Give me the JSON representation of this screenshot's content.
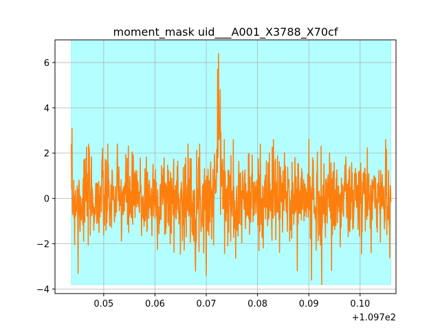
{
  "chart_data": {
    "type": "line",
    "title": "moment_mask uid___A001_X3788_X70cf",
    "xlabel": "",
    "ylabel": "",
    "x_offset_label": "+1.097e2",
    "x_offset": 109.7,
    "xlim": [
      109.7405,
      109.807
    ],
    "ylim": [
      -4.2,
      7.0
    ],
    "x_ticks": [
      109.75,
      109.76,
      109.77,
      109.78,
      109.79,
      109.8
    ],
    "x_tick_labels": [
      "0.05",
      "0.06",
      "0.07",
      "0.08",
      "0.09",
      "0.10"
    ],
    "y_ticks": [
      -4,
      -2,
      0,
      2,
      4,
      6
    ],
    "y_tick_labels": [
      "−4",
      "−2",
      "0",
      "2",
      "4",
      "6"
    ],
    "grid": true,
    "mask": {
      "x_start": 109.7437,
      "x_end": 109.806,
      "y_min": -3.8,
      "y_max": 7.0,
      "color": "#b3ffff",
      "edge": "#8ff5f5"
    },
    "series": [
      {
        "color": "#ff7f0e",
        "x_start": 109.7437,
        "x_end": 109.806,
        "n_points": 1100,
        "noise_sigma": 1.0,
        "seed": 7,
        "peaks": [
          {
            "x": 109.7724,
            "value": 6.4
          },
          {
            "x": 109.7722,
            "value": 5.7
          },
          {
            "x": 109.7727,
            "value": 4.8
          },
          {
            "x": 109.7438,
            "value": 3.1
          },
          {
            "x": 109.745,
            "value": -3.3
          },
          {
            "x": 109.77,
            "value": -3.4
          },
          {
            "x": 109.7925,
            "value": -3.8
          },
          {
            "x": 109.7905,
            "value": -3.6
          },
          {
            "x": 109.7735,
            "value": 2.6
          },
          {
            "x": 109.7753,
            "value": 2.6
          },
          {
            "x": 109.7831,
            "value": 2.6
          },
          {
            "x": 109.79,
            "value": 2.6
          },
          {
            "x": 109.805,
            "value": 2.6
          }
        ]
      }
    ]
  }
}
